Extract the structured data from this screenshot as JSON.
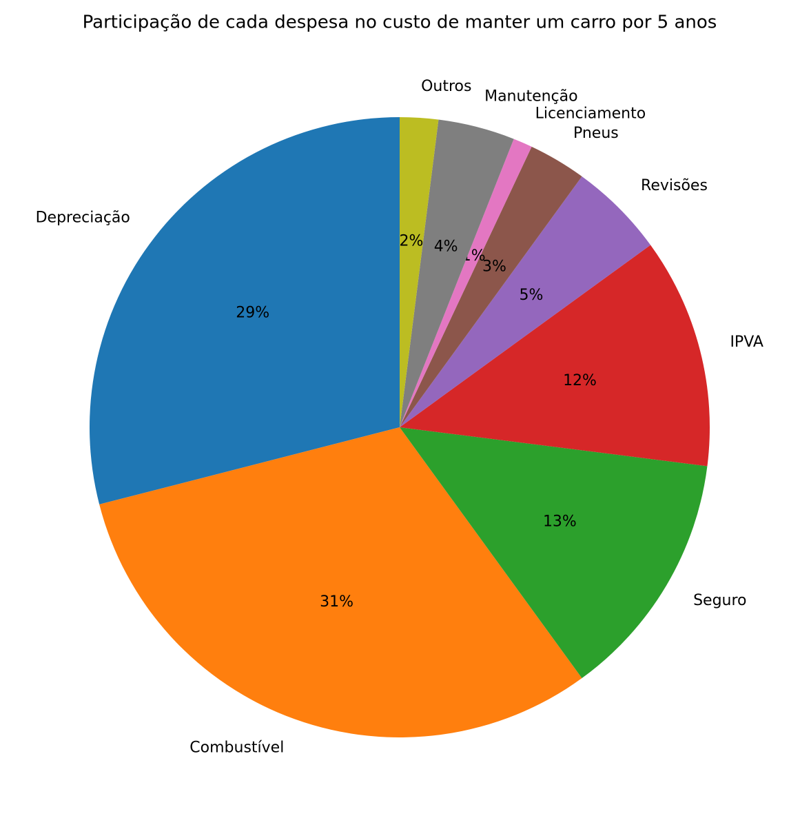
{
  "chart_data": {
    "type": "pie",
    "title": "Participação de cada despesa no custo de manter um carro por 5 anos",
    "categories": [
      "Depreciação",
      "Combustível",
      "Seguro",
      "IPVA",
      "Revisões",
      "Pneus",
      "Licenciamento",
      "Manutenção",
      "Outros"
    ],
    "values": [
      29,
      31,
      13,
      12,
      5,
      3,
      1,
      4,
      2
    ],
    "value_labels": [
      "29%",
      "31%",
      "13%",
      "12%",
      "5%",
      "3%",
      "1%",
      "4%",
      "2%"
    ],
    "colors": [
      "#1f77b4",
      "#ff7f0e",
      "#2ca02c",
      "#d62728",
      "#9467bd",
      "#8c564b",
      "#e377c2",
      "#7f7f7f",
      "#bcbd22"
    ]
  }
}
